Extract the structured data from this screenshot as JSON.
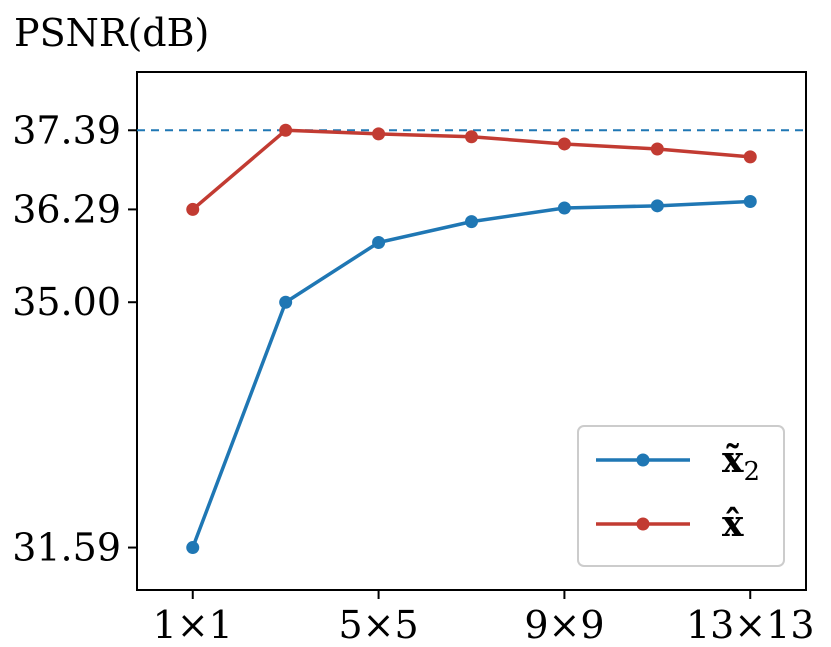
{
  "chart_data": {
    "type": "line",
    "ylabel": "PSNR(dB)",
    "xlabel": "",
    "x": [
      1,
      2,
      3,
      4,
      5,
      6,
      7
    ],
    "x_ticks": [
      {
        "x": 1,
        "label": "1×1"
      },
      {
        "x": 3,
        "label": "5×5"
      },
      {
        "x": 5,
        "label": "9×9"
      },
      {
        "x": 7,
        "label": "13×13"
      }
    ],
    "y_ticks": [
      {
        "y": 31.59,
        "label": "31.59"
      },
      {
        "y": 35.0,
        "label": "35.00"
      },
      {
        "y": 36.29,
        "label": "36.29"
      },
      {
        "y": 37.39,
        "label": "37.39"
      }
    ],
    "xlim": [
      0.4,
      7.6
    ],
    "ylim": [
      31.0,
      38.2
    ],
    "grid": false,
    "legend_position": "bottom-right",
    "reference_line": {
      "y": 37.39,
      "style": "dashed",
      "color": "#1f77b4"
    },
    "series": [
      {
        "name": "x̃",
        "name_subscript": "2",
        "color": "#1f77b4",
        "values": [
          31.59,
          35.0,
          35.83,
          36.12,
          36.31,
          36.34,
          36.4
        ]
      },
      {
        "name": "x̂",
        "name_subscript": "",
        "color": "#c23b32",
        "values": [
          36.29,
          37.39,
          37.34,
          37.3,
          37.2,
          37.13,
          37.02
        ]
      }
    ]
  }
}
